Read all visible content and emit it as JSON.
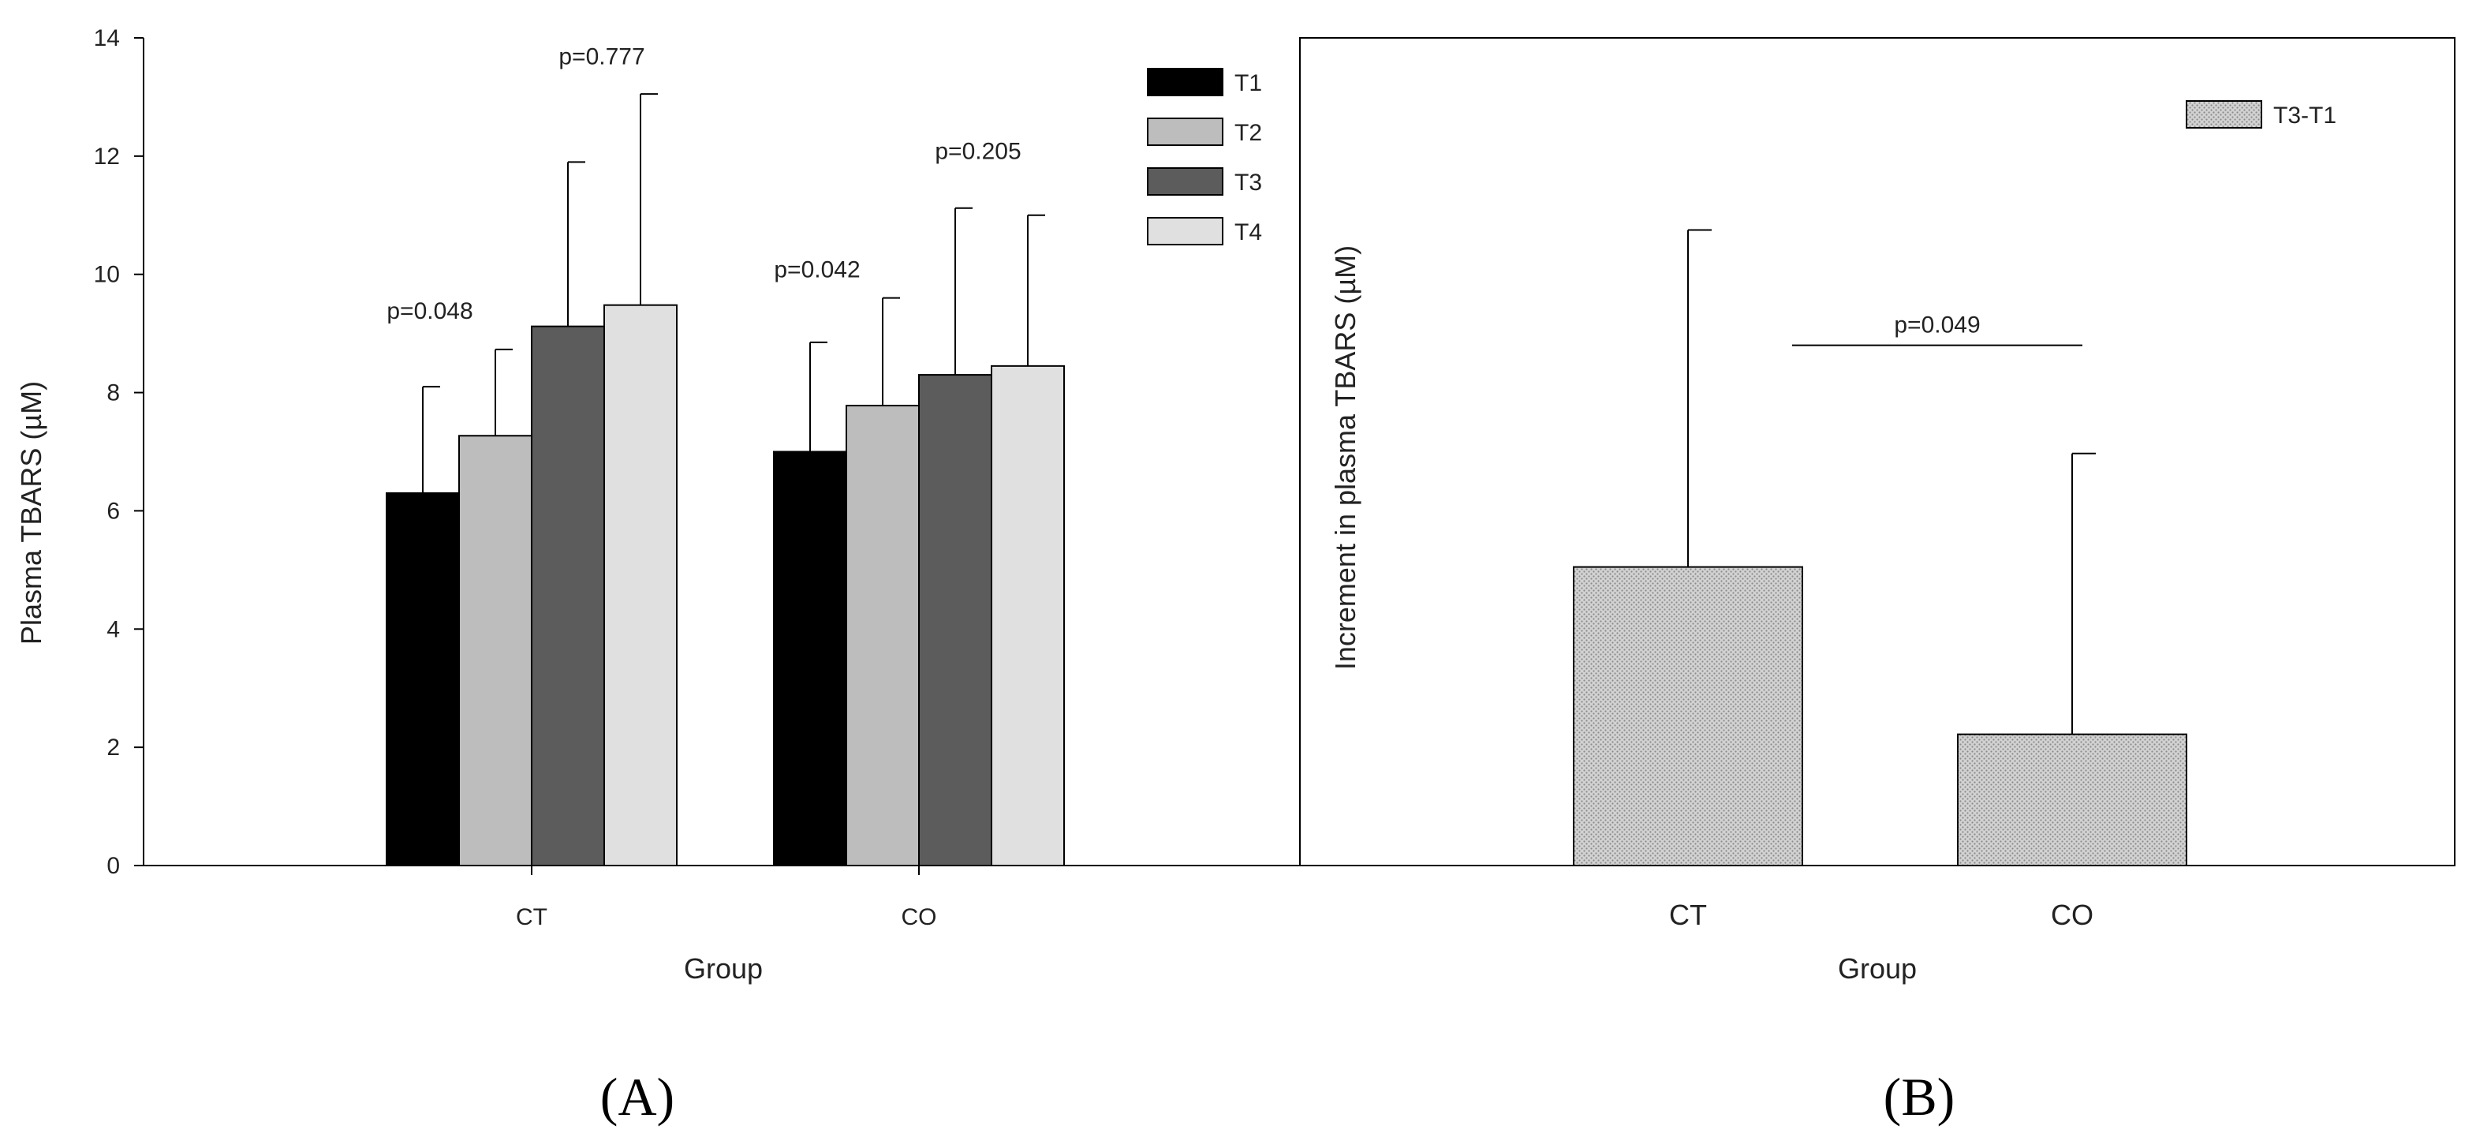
{
  "chart_data": [
    {
      "panel": "A",
      "type": "bar",
      "panel_label": "(A)",
      "xlabel": "Group",
      "ylabel": "Plasma TBARS (µM)",
      "categories": [
        "CT",
        "CO"
      ],
      "ylim": [
        0,
        14
      ],
      "yticks": [
        0,
        2,
        4,
        6,
        8,
        10,
        12,
        14
      ],
      "series": [
        {
          "name": "T1",
          "color": "#000000",
          "values": [
            6.3,
            7.0
          ],
          "errors": [
            1.8,
            1.85
          ]
        },
        {
          "name": "T2",
          "color": "#bdbdbd",
          "values": [
            7.27,
            7.78
          ],
          "errors": [
            1.46,
            1.82
          ]
        },
        {
          "name": "T3",
          "color": "#5c5c5c",
          "values": [
            9.12,
            8.3
          ],
          "errors": [
            2.78,
            2.82
          ]
        },
        {
          "name": "T4",
          "color": "#e0e0e0",
          "values": [
            9.48,
            8.45
          ],
          "errors": [
            3.57,
            2.55
          ]
        }
      ],
      "annotations": [
        {
          "text": "p=0.048",
          "category": "CT",
          "y": 9.25
        },
        {
          "text": "p=0.777",
          "category": "CT",
          "y": 13.55
        },
        {
          "text": "p=0.042",
          "category": "CO",
          "y": 9.95
        },
        {
          "text": "p=0.205",
          "category": "CO",
          "y": 11.95
        }
      ],
      "legend_position": "top-right"
    },
    {
      "panel": "B",
      "type": "bar",
      "panel_label": "(B)",
      "xlabel": "Group",
      "ylabel": "Increment in plasma TBARS (µM)",
      "categories": [
        "CT",
        "CO"
      ],
      "ylim": [
        0,
        14
      ],
      "series": [
        {
          "name": "T3-T1",
          "color": "#c8c8c8",
          "pattern": "dotted",
          "values": [
            5.05,
            2.22
          ],
          "errors": [
            5.7,
            4.75
          ]
        }
      ],
      "annotations": [
        {
          "text": "p=0.049",
          "between": [
            "CT",
            "CO"
          ],
          "y": 8.8
        }
      ],
      "legend_position": "top-right"
    }
  ]
}
